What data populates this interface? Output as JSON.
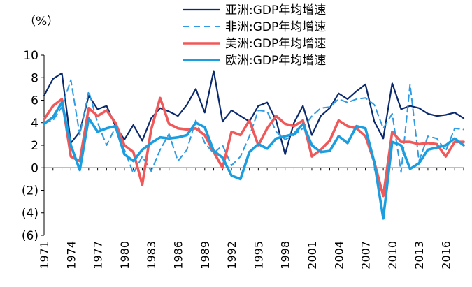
{
  "chart_data": {
    "type": "line",
    "unit_label": "（%）",
    "x": [
      1971,
      1972,
      1973,
      1974,
      1975,
      1976,
      1977,
      1978,
      1979,
      1980,
      1981,
      1982,
      1983,
      1984,
      1985,
      1986,
      1987,
      1988,
      1989,
      1990,
      1991,
      1992,
      1993,
      1994,
      1995,
      1996,
      1997,
      1998,
      1999,
      2000,
      2001,
      2002,
      2003,
      2004,
      2005,
      2006,
      2007,
      2008,
      2009,
      2010,
      2011,
      2012,
      2013,
      2014,
      2015,
      2016,
      2017,
      2018
    ],
    "x_tick_labels": [
      "1971",
      "1974",
      "1977",
      "1980",
      "1983",
      "1986",
      "1989",
      "1992",
      "1995",
      "1998",
      "2001",
      "2004",
      "2007",
      "2010",
      "2013",
      "2016"
    ],
    "x_tick_values": [
      1971,
      1974,
      1977,
      1980,
      1983,
      1986,
      1989,
      1992,
      1995,
      1998,
      2001,
      2004,
      2007,
      2010,
      2013,
      2016
    ],
    "y_ticks": [
      {
        "value": 10,
        "label": "10"
      },
      {
        "value": 8,
        "label": "8"
      },
      {
        "value": 6,
        "label": "6"
      },
      {
        "value": 4,
        "label": "4"
      },
      {
        "value": 2,
        "label": "2"
      },
      {
        "value": 0,
        "label": "0"
      },
      {
        "value": -2,
        "label": "(2)"
      },
      {
        "value": -4,
        "label": "(4)"
      },
      {
        "value": -6,
        "label": "(6)"
      }
    ],
    "ylim": [
      -6,
      10
    ],
    "xlim": [
      1971,
      2018
    ],
    "grid": false,
    "legend_position": "top-right",
    "series": [
      {
        "name": "亚洲:GDP年均增速",
        "color": "#0b2a6e",
        "style": "solid",
        "values": [
          6.4,
          7.9,
          8.4,
          2.2,
          3.2,
          6.4,
          5.2,
          5.5,
          3.7,
          2.5,
          3.8,
          2.4,
          4.4,
          5.3,
          5.0,
          4.6,
          5.6,
          7.0,
          4.9,
          8.6,
          4.1,
          5.1,
          4.6,
          4.1,
          5.5,
          5.8,
          4.2,
          1.2,
          4.0,
          5.5,
          2.9,
          4.6,
          5.3,
          6.6,
          6.1,
          6.8,
          7.4,
          4.1,
          2.6,
          7.5,
          5.2,
          5.5,
          5.3,
          4.8,
          4.6,
          4.7,
          4.9,
          4.4
        ]
      },
      {
        "name": "非洲:GDP年均增速",
        "color": "#2f9be4",
        "style": "dashed",
        "values": [
          4.0,
          4.2,
          5.4,
          7.8,
          2.9,
          6.8,
          4.0,
          2.0,
          3.6,
          1.6,
          -0.5,
          1.0,
          -0.3,
          1.6,
          3.0,
          0.6,
          1.6,
          4.2,
          2.2,
          1.3,
          2.0,
          0.2,
          1.0,
          2.8,
          5.1,
          5.0,
          3.2,
          2.5,
          2.9,
          3.5,
          4.6,
          5.3,
          5.4,
          6.1,
          5.8,
          6.1,
          6.2,
          5.6,
          3.5,
          4.8,
          -0.4,
          7.4,
          0.6,
          2.8,
          2.6,
          1.5,
          3.5,
          3.4
        ]
      },
      {
        "name": "美洲:GDP年均增速",
        "color": "#f0595a",
        "style": "solid",
        "values": [
          4.3,
          5.5,
          6.1,
          1.0,
          0.6,
          5.3,
          4.6,
          5.1,
          4.0,
          2.0,
          1.4,
          -1.5,
          3.4,
          6.2,
          3.9,
          3.5,
          3.4,
          3.5,
          2.9,
          1.4,
          0.0,
          3.2,
          2.9,
          4.2,
          2.0,
          3.5,
          4.6,
          3.9,
          3.7,
          4.2,
          1.0,
          1.6,
          2.4,
          4.2,
          3.7,
          3.5,
          2.8,
          0.5,
          -2.5,
          3.2,
          2.3,
          2.3,
          2.1,
          2.2,
          2.1,
          1.0,
          2.3,
          2.3
        ]
      },
      {
        "name": "欧洲:GDP年均增速",
        "color": "#1a9ee0",
        "style": "solid",
        "values": [
          3.9,
          4.5,
          5.8,
          2.0,
          -0.2,
          4.4,
          3.2,
          3.5,
          3.7,
          1.2,
          0.6,
          1.6,
          2.2,
          2.7,
          2.6,
          2.7,
          2.9,
          4.0,
          3.6,
          1.5,
          0.9,
          -0.7,
          -1.0,
          1.4,
          2.1,
          1.7,
          2.6,
          2.8,
          3.0,
          3.9,
          2.0,
          1.4,
          1.5,
          2.8,
          2.2,
          3.7,
          3.5,
          0.5,
          -4.5,
          2.3,
          2.0,
          -0.1,
          0.4,
          1.6,
          1.8,
          2.0,
          2.6,
          2.0
        ]
      }
    ]
  }
}
